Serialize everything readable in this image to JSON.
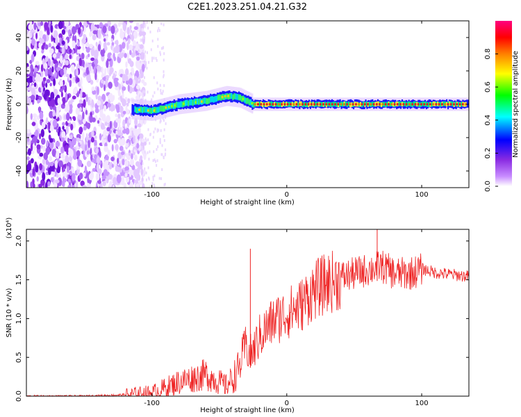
{
  "title": "C2E1.2023.251.04.21.G32",
  "chart_data": [
    {
      "type": "heatmap",
      "xlabel": "Height of straight line (km)",
      "ylabel": "Frequency (Hz)",
      "xlim": [
        -193,
        135
      ],
      "ylim": [
        -50,
        50
      ],
      "xticks": [
        -100,
        0,
        100
      ],
      "xtick_labels": [
        "-100",
        "0",
        "100"
      ],
      "yticks": [
        -40,
        -20,
        0,
        20,
        40
      ],
      "ytick_labels": [
        "-40",
        "-20",
        "0",
        "20",
        "40"
      ],
      "colorbar": {
        "label": "Normalized spectral amplitude",
        "range": [
          0,
          1
        ],
        "ticks": [
          0.0,
          0.2,
          0.4,
          0.6,
          0.8
        ],
        "tick_labels": [
          "0.0",
          "0.2",
          "0.4",
          "0.6",
          "0.8"
        ],
        "colors": [
          "#ffffff",
          "#8a2be2",
          "#0000ff",
          "#00ffff",
          "#00ff00",
          "#ffff00",
          "#ff8000",
          "#ff0000",
          "#ff0080"
        ]
      },
      "trace_frequency": {
        "x": [
          -115,
          -100,
          -80,
          -60,
          -45,
          -35,
          -25,
          0,
          50,
          100,
          135
        ],
        "y": [
          -3,
          -4,
          0,
          2,
          5,
          4,
          0,
          0,
          0,
          0,
          0
        ]
      }
    },
    {
      "type": "line",
      "xlabel": "Height of straight line (km)",
      "ylabel": "SNR (10 * v/v)",
      "yscale_label": "(x10⁴)",
      "xlim": [
        -193,
        135
      ],
      "ylim": [
        0,
        2.15
      ],
      "xticks": [
        -100,
        0,
        100
      ],
      "xtick_labels": [
        "-100",
        "0",
        "100"
      ],
      "yticks": [
        0.0,
        0.5,
        1.0,
        1.5,
        2.0
      ],
      "ytick_labels": [
        "0.0",
        "0.5",
        "1.0",
        "1.5",
        "2.0"
      ],
      "color": "#ee2222",
      "series": [
        {
          "x": [
            -193,
            -150,
            -120,
            -100,
            -90,
            -80,
            -70,
            -60,
            -50,
            -45,
            -40,
            -35,
            -32,
            -30,
            -28,
            -25,
            -20,
            -15,
            -10,
            -5,
            0,
            5,
            10,
            15,
            20,
            25,
            30,
            40,
            50,
            60,
            70,
            80,
            90,
            100,
            110,
            120,
            135
          ],
          "y": [
            0.0,
            0.0,
            0.02,
            0.05,
            0.12,
            0.2,
            0.25,
            0.3,
            0.2,
            0.15,
            0.25,
            0.4,
            0.6,
            0.7,
            0.55,
            0.6,
            0.8,
            0.9,
            1.0,
            1.05,
            1.1,
            1.15,
            1.2,
            1.3,
            1.4,
            1.45,
            1.5,
            1.55,
            1.6,
            1.65,
            1.7,
            1.6,
            1.6,
            1.65,
            1.6,
            1.58,
            1.55
          ]
        }
      ],
      "spikes": [
        {
          "x": -27,
          "y": 1.9
        },
        {
          "x": 67,
          "y": 2.15
        }
      ]
    }
  ]
}
